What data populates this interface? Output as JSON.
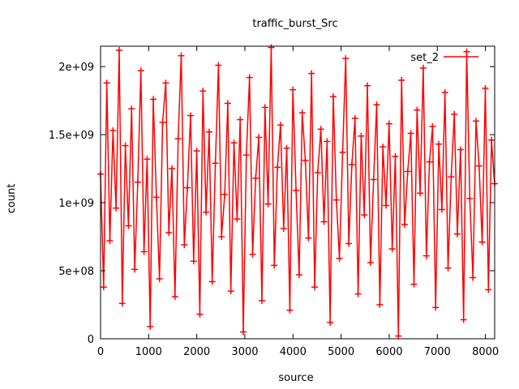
{
  "chart_data": {
    "type": "line",
    "title": "traffic_burst_Src",
    "xlabel": "source",
    "ylabel": "count",
    "xlim": [
      0,
      8192
    ],
    "ylim": [
      0,
      2150000000
    ],
    "xticks": [
      0,
      1000,
      2000,
      3000,
      4000,
      5000,
      6000,
      7000,
      8000
    ],
    "xtick_labels": [
      "0",
      "1000",
      "2000",
      "3000",
      "4000",
      "5000",
      "6000",
      "7000",
      "8000"
    ],
    "yticks": [
      0,
      500000000,
      1000000000,
      1500000000,
      2000000000
    ],
    "ytick_labels": [
      "0",
      "5e+08",
      "1e+09",
      "1.5e+09",
      "2e+09"
    ],
    "grid": false,
    "legend_position": "top-right",
    "series": [
      {
        "name": "set_2",
        "color": "#ff0000",
        "marker": "plus",
        "x_range": [
          0,
          8191
        ],
        "y_range": [
          0,
          2147483647
        ],
        "values_sample": [
          1210000000,
          380000000,
          1880000000,
          720000000,
          1530000000,
          960000000,
          2120000000,
          260000000,
          1420000000,
          830000000,
          1690000000,
          510000000,
          1150000000,
          1970000000,
          640000000,
          1320000000,
          90000000,
          1760000000,
          1040000000,
          440000000,
          1590000000,
          1880000000,
          780000000,
          1250000000,
          310000000,
          1470000000,
          2080000000,
          690000000,
          1110000000,
          1640000000,
          570000000,
          1380000000,
          180000000,
          1820000000,
          930000000,
          1520000000,
          420000000,
          1290000000,
          2010000000,
          750000000,
          1060000000,
          1730000000,
          350000000,
          1440000000,
          880000000,
          1610000000,
          50000000,
          1350000000,
          1920000000,
          620000000,
          1180000000,
          1480000000,
          280000000,
          1700000000,
          990000000,
          2140000000,
          540000000,
          1260000000,
          1570000000,
          810000000,
          1400000000,
          210000000,
          1830000000,
          1090000000,
          470000000,
          1660000000,
          1310000000,
          740000000,
          1950000000,
          380000000,
          1220000000,
          1540000000,
          860000000,
          1450000000,
          120000000,
          1780000000,
          1020000000,
          590000000,
          1370000000,
          2060000000,
          700000000,
          1280000000,
          1620000000,
          330000000,
          1490000000,
          910000000,
          1860000000,
          560000000,
          1170000000,
          1720000000,
          250000000,
          1410000000,
          980000000,
          1580000000,
          660000000,
          1340000000,
          20000000,
          1900000000,
          840000000,
          1230000000,
          1510000000,
          400000000,
          1680000000,
          1070000000,
          1990000000,
          610000000,
          1300000000,
          1560000000,
          230000000,
          1430000000,
          950000000,
          1810000000,
          520000000,
          1190000000,
          1650000000,
          770000000,
          1390000000,
          140000000,
          2110000000,
          1030000000,
          450000000,
          1600000000,
          1270000000,
          710000000,
          1840000000,
          360000000,
          1460000000,
          1140000000
        ]
      }
    ]
  }
}
